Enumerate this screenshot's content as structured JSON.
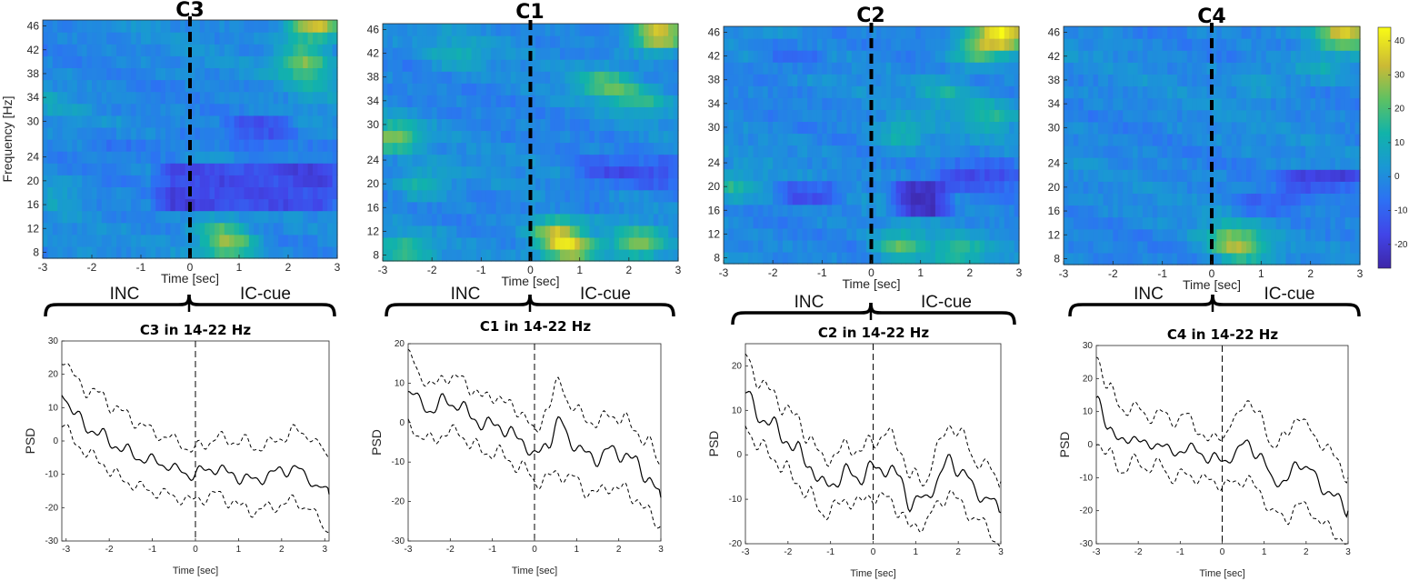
{
  "chart_data": [
    {
      "type": "heatmap",
      "title": "C3",
      "xlabel": "Time [sec]",
      "ylabel": "Frequency [Hz]",
      "xlim": [
        -3,
        3
      ],
      "ylim": [
        7,
        47
      ],
      "xticks": [
        -3,
        -2,
        -1,
        0,
        1,
        2,
        3
      ],
      "yticks": [
        8,
        12,
        16,
        20,
        24,
        30,
        34,
        38,
        42,
        46
      ],
      "event_line_x": 0,
      "hotspots": [
        {
          "t": 2.5,
          "f": 46,
          "v": 36
        },
        {
          "t": 2.3,
          "f": 40,
          "v": 26
        },
        {
          "t": 0.8,
          "f": 9,
          "v": 26
        },
        {
          "t": 0.6,
          "f": 12,
          "v": 16
        },
        {
          "t": 2.6,
          "f": 36,
          "v": 8
        },
        {
          "t": -2.7,
          "f": 18,
          "v": 8
        },
        {
          "t": -2.8,
          "f": 33,
          "v": 6
        }
      ],
      "bands": [
        {
          "t0": -0.6,
          "t1": 3.0,
          "f0": 15,
          "f1": 23,
          "v": -16
        },
        {
          "t0": 0.8,
          "t1": 2.0,
          "f0": 26,
          "f1": 31,
          "v": -10
        },
        {
          "t0": -2.0,
          "t1": 0.0,
          "f0": 24,
          "f1": 28,
          "v": -5
        }
      ]
    },
    {
      "type": "heatmap",
      "title": "C1",
      "xlabel": "Time [sec]",
      "ylabel": "",
      "xlim": [
        -3,
        3
      ],
      "ylim": [
        7,
        47
      ],
      "xticks": [
        -3,
        -2,
        -1,
        0,
        1,
        2,
        3
      ],
      "yticks": [
        8,
        12,
        16,
        20,
        24,
        30,
        34,
        38,
        42,
        46
      ],
      "event_line_x": 0,
      "hotspots": [
        {
          "t": 2.6,
          "f": 45,
          "v": 38
        },
        {
          "t": 0.8,
          "f": 9,
          "v": 34
        },
        {
          "t": 0.5,
          "f": 12,
          "v": 28
        },
        {
          "t": 2.2,
          "f": 10,
          "v": 26
        },
        {
          "t": -2.8,
          "f": 28,
          "v": 26
        },
        {
          "t": 1.5,
          "f": 37,
          "v": 22
        },
        {
          "t": 2.2,
          "f": 34,
          "v": 16
        },
        {
          "t": -2.2,
          "f": 20,
          "v": 16
        },
        {
          "t": -1.5,
          "f": 42,
          "v": 12
        },
        {
          "t": -2.5,
          "f": 9,
          "v": 18
        }
      ],
      "bands": [
        {
          "t0": 1.0,
          "t1": 3.0,
          "f0": 20,
          "f1": 24,
          "v": -12
        },
        {
          "t0": 0.3,
          "t1": 1.5,
          "f0": 15,
          "f1": 18,
          "v": -6
        }
      ]
    },
    {
      "type": "heatmap",
      "title": "C2",
      "xlabel": "Time [sec]",
      "ylabel": "",
      "xlim": [
        -3,
        3
      ],
      "ylim": [
        7,
        47
      ],
      "xticks": [
        -3,
        -2,
        -1,
        0,
        1,
        2,
        3
      ],
      "yticks": [
        8,
        12,
        16,
        20,
        24,
        30,
        34,
        38,
        42,
        46
      ],
      "event_line_x": 0,
      "hotspots": [
        {
          "t": 2.7,
          "f": 46,
          "v": 38
        },
        {
          "t": 2.2,
          "f": 43,
          "v": 24
        },
        {
          "t": 0.6,
          "f": 10,
          "v": 22
        },
        {
          "t": 1.8,
          "f": 9,
          "v": 18
        },
        {
          "t": 2.4,
          "f": 32,
          "v": 16
        },
        {
          "t": 0.6,
          "f": 29,
          "v": 14
        },
        {
          "t": -2.8,
          "f": 20,
          "v": 16
        },
        {
          "t": 1.5,
          "f": 36,
          "v": 12
        }
      ],
      "bands": [
        {
          "t0": 0.5,
          "t1": 1.5,
          "f0": 15,
          "f1": 21,
          "v": -22
        },
        {
          "t0": 1.5,
          "t1": 3.0,
          "f0": 20,
          "f1": 24,
          "v": -14
        },
        {
          "t0": -1.8,
          "t1": -0.6,
          "f0": 17,
          "f1": 21,
          "v": -12
        },
        {
          "t0": -2.2,
          "t1": -1.0,
          "f0": 40,
          "f1": 44,
          "v": -8
        }
      ]
    },
    {
      "type": "heatmap",
      "title": "C4",
      "xlabel": "Time [sec]",
      "ylabel": "",
      "xlim": [
        -3,
        3
      ],
      "ylim": [
        7,
        47
      ],
      "xticks": [
        -3,
        -2,
        -1,
        0,
        1,
        2,
        3
      ],
      "yticks": [
        8,
        12,
        16,
        20,
        24,
        30,
        34,
        38,
        42,
        46
      ],
      "event_line_x": 0,
      "hotspots": [
        {
          "t": 2.7,
          "f": 46,
          "v": 36
        },
        {
          "t": 0.6,
          "f": 10,
          "v": 24
        },
        {
          "t": 0.3,
          "f": 12,
          "v": 14
        },
        {
          "t": 2.2,
          "f": 40,
          "v": 10
        },
        {
          "t": 1.0,
          "f": 38,
          "v": 8
        }
      ],
      "bands": [
        {
          "t0": 1.5,
          "t1": 3.0,
          "f0": 20,
          "f1": 23,
          "v": -20
        },
        {
          "t0": 0.5,
          "t1": 1.8,
          "f0": 16,
          "f1": 19,
          "v": -9
        }
      ]
    },
    {
      "type": "line",
      "title": "C3 in 14-22 Hz",
      "xlabel": "Time [sec]",
      "ylabel": "PSD",
      "xlim": [
        -3.1,
        3.1
      ],
      "ylim": [
        -30,
        30
      ],
      "xticks": [
        -3,
        -2,
        -1,
        0,
        1,
        2,
        3
      ],
      "yticks": [
        30,
        20,
        10,
        0,
        -10,
        -20,
        -30
      ],
      "x": [
        -3.1,
        -2.8,
        -2.5,
        -2.2,
        -1.9,
        -1.6,
        -1.3,
        -1.0,
        -0.7,
        -0.4,
        -0.1,
        0.2,
        0.5,
        0.8,
        1.1,
        1.4,
        1.7,
        2.0,
        2.3,
        2.6,
        2.9,
        3.1
      ],
      "series": [
        {
          "values": [
            15,
            8,
            4,
            2,
            -1,
            -3,
            -5,
            -6,
            -7,
            -9,
            -10,
            -9,
            -8,
            -10,
            -11,
            -12,
            -10,
            -9,
            -8,
            -11,
            -14,
            -16
          ]
        },
        {
          "values": [
            25,
            19,
            15,
            14,
            10,
            8,
            5,
            3,
            1,
            0,
            -3,
            -1,
            1,
            0,
            0,
            -2,
            -1,
            1,
            3,
            2,
            -2,
            -5
          ]
        },
        {
          "values": [
            5,
            0,
            -4,
            -6,
            -10,
            -12,
            -14,
            -15,
            -16,
            -17,
            -18,
            -17,
            -16,
            -18,
            -20,
            -21,
            -20,
            -19,
            -18,
            -20,
            -24,
            -27
          ]
        }
      ],
      "event_line_x": 0
    },
    {
      "type": "line",
      "title": "C1 in 14-22 Hz",
      "xlabel": "Time [sec]",
      "ylabel": "PSD",
      "xlim": [
        -3,
        3
      ],
      "ylim": [
        -30,
        20
      ],
      "xticks": [
        -3,
        -2,
        -1,
        0,
        1,
        2,
        3
      ],
      "yticks": [
        20,
        10,
        0,
        -10,
        -20,
        -30
      ],
      "x": [
        -3.0,
        -2.7,
        -2.4,
        -2.1,
        -1.8,
        -1.5,
        -1.2,
        -0.9,
        -0.6,
        -0.3,
        0.0,
        0.3,
        0.6,
        0.9,
        1.2,
        1.5,
        1.8,
        2.1,
        2.4,
        2.7,
        3.0
      ],
      "series": [
        {
          "values": [
            8,
            5,
            3,
            6,
            4,
            2,
            -1,
            0,
            -3,
            -4,
            -9,
            -5,
            0,
            -5,
            -8,
            -9,
            -7,
            -8,
            -10,
            -14,
            -19
          ]
        },
        {
          "values": [
            17,
            12,
            9,
            12,
            11,
            9,
            6,
            7,
            4,
            3,
            -3,
            4,
            10,
            4,
            1,
            0,
            2,
            1,
            -2,
            -5,
            -11
          ]
        },
        {
          "values": [
            -1,
            -3,
            -5,
            -2,
            -3,
            -5,
            -8,
            -7,
            -10,
            -11,
            -15,
            -14,
            -13,
            -14,
            -17,
            -18,
            -16,
            -17,
            -19,
            -23,
            -26
          ]
        }
      ],
      "event_line_x": 0
    },
    {
      "type": "line",
      "title": "C2 in 14-22 Hz",
      "xlabel": "Time [sec]",
      "ylabel": "PSD",
      "xlim": [
        -3,
        3
      ],
      "ylim": [
        -20,
        25
      ],
      "xticks": [
        -3,
        -2,
        -1,
        0,
        1,
        2,
        3
      ],
      "yticks": [
        20,
        10,
        0,
        -10,
        -20
      ],
      "x": [
        -3.0,
        -2.7,
        -2.4,
        -2.1,
        -1.8,
        -1.5,
        -1.2,
        -0.9,
        -0.6,
        -0.3,
        0.0,
        0.3,
        0.6,
        0.9,
        1.2,
        1.5,
        1.8,
        2.1,
        2.4,
        2.7,
        3.0
      ],
      "series": [
        {
          "values": [
            14,
            9,
            7,
            4,
            1,
            -2,
            -7,
            -6,
            -4,
            -5,
            -3,
            -3,
            -5,
            -11,
            -10,
            -6,
            -1,
            -4,
            -8,
            -10,
            -13
          ]
        },
        {
          "values": [
            22,
            17,
            14,
            11,
            8,
            4,
            -1,
            0,
            2,
            1,
            3,
            5,
            2,
            -5,
            -6,
            1,
            7,
            4,
            -1,
            -3,
            -6
          ]
        },
        {
          "values": [
            7,
            2,
            0,
            -3,
            -6,
            -9,
            -13,
            -12,
            -10,
            -11,
            -9,
            -10,
            -12,
            -17,
            -15,
            -12,
            -8,
            -12,
            -14,
            -17,
            -20
          ]
        }
      ],
      "event_line_x": 0
    },
    {
      "type": "line",
      "title": "C4 in 14-22 Hz",
      "xlabel": "Time [sec]",
      "ylabel": "PSD",
      "xlim": [
        -3,
        3
      ],
      "ylim": [
        -30,
        30
      ],
      "xticks": [
        -3,
        -2,
        -1,
        0,
        1,
        2,
        3
      ],
      "yticks": [
        30,
        20,
        10,
        0,
        -10,
        -20,
        -30
      ],
      "x": [
        -3.0,
        -2.7,
        -2.4,
        -2.1,
        -1.8,
        -1.5,
        -1.2,
        -0.9,
        -0.6,
        -0.3,
        0.0,
        0.3,
        0.6,
        0.9,
        1.2,
        1.5,
        1.8,
        2.1,
        2.4,
        2.7,
        3.0
      ],
      "series": [
        {
          "values": [
            13,
            6,
            0,
            3,
            -1,
            1,
            -3,
            -1,
            -2,
            -4,
            -5,
            -3,
            1,
            -4,
            -10,
            -12,
            -5,
            -8,
            -13,
            -16,
            -20
          ]
        },
        {
          "values": [
            26,
            18,
            10,
            12,
            8,
            10,
            7,
            9,
            5,
            1,
            3,
            7,
            14,
            8,
            0,
            2,
            9,
            4,
            0,
            -4,
            -10
          ]
        },
        {
          "values": [
            1,
            -3,
            -8,
            -5,
            -7,
            -6,
            -10,
            -9,
            -10,
            -11,
            -12,
            -12,
            -10,
            -15,
            -20,
            -23,
            -18,
            -20,
            -24,
            -27,
            -30
          ]
        }
      ],
      "event_line_x": 0
    }
  ],
  "colorbar": {
    "ticks": [
      40,
      30,
      20,
      10,
      0,
      -10,
      -20
    ],
    "range": [
      -27,
      44
    ]
  },
  "braces": [
    {
      "left": "INC",
      "right": "IC-cue"
    },
    {
      "left": "INC",
      "right": "IC-cue"
    },
    {
      "left": "INC",
      "right": "IC-cue"
    },
    {
      "left": "INC",
      "right": "IC-cue"
    }
  ]
}
